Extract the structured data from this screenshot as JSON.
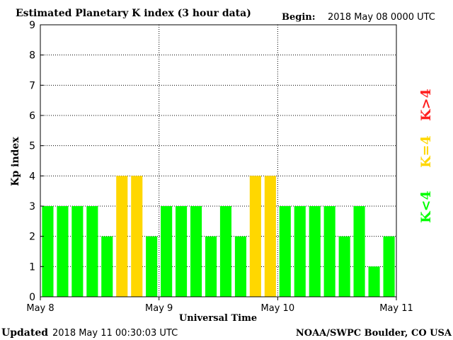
{
  "header": {
    "title": "Estimated Planetary K index (3 hour data)",
    "begin_label": "Begin:",
    "begin_value": "2018 May 08 0000 UTC"
  },
  "footer": {
    "updated_label": "Updated",
    "updated_value": "2018 May 11 00:30:03 UTC",
    "source": "NOAA/SWPC Boulder, CO USA"
  },
  "legend": {
    "gt4": "K>4",
    "eq4": "K=4",
    "lt4": "K<4"
  },
  "colors": {
    "lt4": "#00ff00",
    "eq4": "#ffd700",
    "gt4": "#ff2020",
    "grid": "#000000",
    "text": "#000000"
  },
  "chart_data": {
    "type": "bar",
    "title": "Estimated Planetary K index (3 hour data)",
    "xlabel": "Universal Time",
    "ylabel": "Kp index",
    "ylim": [
      0,
      9
    ],
    "yticks": [
      0,
      1,
      2,
      3,
      4,
      5,
      6,
      7,
      8,
      9
    ],
    "xtick_labels": [
      "May 8",
      "May 9",
      "May 10",
      "May 11"
    ],
    "grid": true,
    "values": [
      3,
      3,
      3,
      3,
      2,
      4,
      4,
      2,
      3,
      3,
      3,
      2,
      3,
      2,
      4,
      4,
      3,
      3,
      3,
      3,
      2,
      3,
      1,
      2
    ]
  }
}
